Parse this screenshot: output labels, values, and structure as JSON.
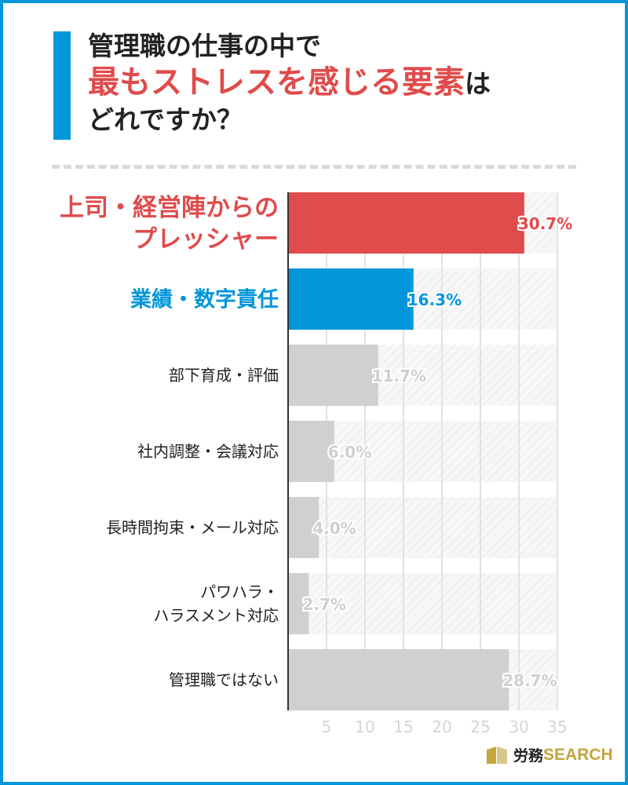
{
  "title": {
    "line1": "管理職の仕事の中で",
    "line2": "最もストレスを感じる要素",
    "line2_tail": "は",
    "line3": "どれですか？"
  },
  "chart_data": {
    "type": "bar",
    "orientation": "horizontal",
    "categories": [
      [
        "上司・経営陣からの",
        "プレッシャー"
      ],
      [
        "業績・数字責任"
      ],
      [
        "部下育成・評価"
      ],
      [
        "社内調整・会議対応"
      ],
      [
        "長時間拘束・メール対応"
      ],
      [
        "パワハラ・",
        "ハラスメント対応"
      ],
      [
        "管理職ではない"
      ]
    ],
    "values": [
      30.7,
      16.3,
      11.7,
      6.0,
      4.0,
      2.7,
      28.7
    ],
    "labels": [
      "30.7%",
      "16.3%",
      "11.7%",
      "6.0%",
      "4.0%",
      "2.7%",
      "28.7%"
    ],
    "colors": [
      "#e04b4b",
      "#0096d9",
      "#d0d0d0",
      "#d0d0d0",
      "#d0d0d0",
      "#d0d0d0",
      "#d0d0d0"
    ],
    "label_colors": [
      "#e04b4b",
      "#0096d9",
      "#cfcfcf",
      "#cfcfcf",
      "#cfcfcf",
      "#cfcfcf",
      "#cfcfcf"
    ],
    "xlim": [
      0,
      35
    ],
    "xticks": [
      5,
      10,
      15,
      20,
      25,
      30,
      35
    ],
    "grid": true
  },
  "logo": {
    "ja": "労務",
    "en": "SEARCH"
  }
}
